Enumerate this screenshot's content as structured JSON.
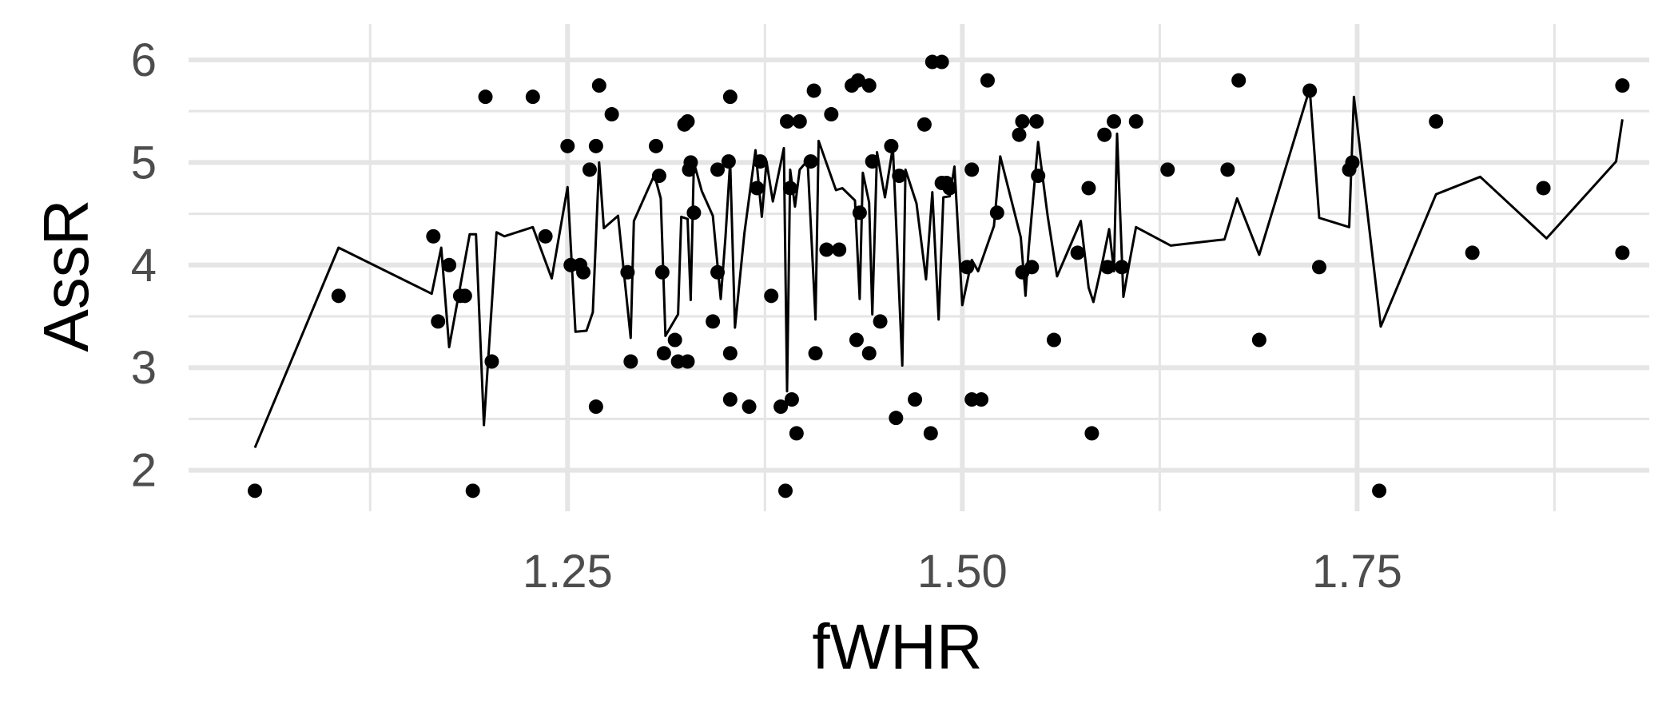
{
  "chart_data": {
    "type": "scatter",
    "xlabel": "fWHR",
    "ylabel": "AssR",
    "xlim": [
      1.01,
      1.935
    ],
    "ylim": [
      1.6,
      6.35
    ],
    "x_ticks": [
      1.25,
      1.5,
      1.75
    ],
    "x_tick_labels": [
      "1.25",
      "1.50",
      "1.75"
    ],
    "x_minor_ticks": [
      1.125,
      1.375,
      1.625,
      1.875
    ],
    "y_ticks": [
      2,
      3,
      4,
      5,
      6
    ],
    "y_tick_labels": [
      "2",
      "3",
      "4",
      "5",
      "6"
    ],
    "y_minor_ticks": [
      2.5,
      3.5,
      4.5,
      5.5
    ],
    "grid": true,
    "legend": "none",
    "colors": {
      "points": "#000000",
      "line": "#000000",
      "grid": "#e5e5e5"
    },
    "points": [
      [
        1.052,
        1.8
      ],
      [
        1.105,
        3.7
      ],
      [
        1.165,
        4.28
      ],
      [
        1.168,
        3.45
      ],
      [
        1.175,
        4.0
      ],
      [
        1.182,
        3.7
      ],
      [
        1.185,
        3.7
      ],
      [
        1.19,
        1.8
      ],
      [
        1.198,
        5.64
      ],
      [
        1.202,
        3.06
      ],
      [
        1.228,
        5.64
      ],
      [
        1.236,
        4.28
      ],
      [
        1.25,
        5.16
      ],
      [
        1.252,
        4.0
      ],
      [
        1.258,
        4.0
      ],
      [
        1.26,
        3.93
      ],
      [
        1.264,
        4.93
      ],
      [
        1.268,
        5.16
      ],
      [
        1.268,
        2.62
      ],
      [
        1.27,
        5.75
      ],
      [
        1.278,
        5.47
      ],
      [
        1.288,
        3.93
      ],
      [
        1.29,
        3.06
      ],
      [
        1.306,
        5.16
      ],
      [
        1.308,
        4.87
      ],
      [
        1.31,
        3.93
      ],
      [
        1.311,
        3.14
      ],
      [
        1.318,
        3.27
      ],
      [
        1.32,
        3.06
      ],
      [
        1.324,
        5.37
      ],
      [
        1.326,
        5.4
      ],
      [
        1.326,
        3.06
      ],
      [
        1.327,
        4.93
      ],
      [
        1.328,
        5.0
      ],
      [
        1.33,
        4.51
      ],
      [
        1.342,
        3.45
      ],
      [
        1.345,
        4.93
      ],
      [
        1.345,
        3.93
      ],
      [
        1.352,
        5.01
      ],
      [
        1.353,
        5.64
      ],
      [
        1.353,
        3.14
      ],
      [
        1.353,
        2.69
      ],
      [
        1.365,
        2.62
      ],
      [
        1.37,
        4.75
      ],
      [
        1.372,
        5.01
      ],
      [
        1.379,
        3.7
      ],
      [
        1.385,
        2.62
      ],
      [
        1.388,
        1.8
      ],
      [
        1.389,
        5.4
      ],
      [
        1.391,
        4.75
      ],
      [
        1.392,
        2.69
      ],
      [
        1.395,
        2.36
      ],
      [
        1.397,
        5.4
      ],
      [
        1.404,
        5.01
      ],
      [
        1.406,
        5.7
      ],
      [
        1.407,
        3.14
      ],
      [
        1.414,
        4.15
      ],
      [
        1.417,
        5.47
      ],
      [
        1.422,
        4.15
      ],
      [
        1.43,
        5.75
      ],
      [
        1.434,
        5.8
      ],
      [
        1.435,
        4.51
      ],
      [
        1.433,
        3.27
      ],
      [
        1.441,
        5.75
      ],
      [
        1.441,
        3.14
      ],
      [
        1.443,
        5.01
      ],
      [
        1.448,
        3.45
      ],
      [
        1.455,
        5.16
      ],
      [
        1.458,
        2.51
      ],
      [
        1.46,
        4.87
      ],
      [
        1.47,
        2.69
      ],
      [
        1.476,
        5.37
      ],
      [
        1.481,
        5.98
      ],
      [
        1.48,
        2.36
      ],
      [
        1.487,
        5.98
      ],
      [
        1.487,
        4.8
      ],
      [
        1.49,
        4.8
      ],
      [
        1.492,
        4.75
      ],
      [
        1.503,
        3.98
      ],
      [
        1.506,
        2.69
      ],
      [
        1.506,
        4.93
      ],
      [
        1.512,
        2.69
      ],
      [
        1.516,
        5.8
      ],
      [
        1.522,
        4.51
      ],
      [
        1.536,
        5.27
      ],
      [
        1.538,
        5.4
      ],
      [
        1.538,
        3.93
      ],
      [
        1.544,
        3.98
      ],
      [
        1.547,
        5.4
      ],
      [
        1.548,
        4.87
      ],
      [
        1.558,
        3.27
      ],
      [
        1.573,
        4.12
      ],
      [
        1.58,
        4.75
      ],
      [
        1.582,
        2.36
      ],
      [
        1.59,
        5.27
      ],
      [
        1.592,
        3.98
      ],
      [
        1.596,
        5.4
      ],
      [
        1.601,
        3.98
      ],
      [
        1.61,
        5.4
      ],
      [
        1.63,
        4.93
      ],
      [
        1.668,
        4.93
      ],
      [
        1.675,
        5.8
      ],
      [
        1.688,
        3.27
      ],
      [
        1.72,
        5.7
      ],
      [
        1.726,
        3.98
      ],
      [
        1.745,
        4.93
      ],
      [
        1.747,
        5.0
      ],
      [
        1.764,
        1.8
      ],
      [
        1.8,
        5.4
      ],
      [
        1.823,
        4.12
      ],
      [
        1.868,
        4.75
      ],
      [
        1.918,
        5.75
      ],
      [
        1.918,
        4.12
      ]
    ],
    "line": [
      [
        1.052,
        2.22
      ],
      [
        1.105,
        4.17
      ],
      [
        1.164,
        3.72
      ],
      [
        1.17,
        4.17
      ],
      [
        1.175,
        3.2
      ],
      [
        1.188,
        4.3
      ],
      [
        1.192,
        4.3
      ],
      [
        1.197,
        2.44
      ],
      [
        1.205,
        4.32
      ],
      [
        1.21,
        4.28
      ],
      [
        1.228,
        4.37
      ],
      [
        1.24,
        3.87
      ],
      [
        1.25,
        4.76
      ],
      [
        1.255,
        3.35
      ],
      [
        1.262,
        3.36
      ],
      [
        1.266,
        3.54
      ],
      [
        1.27,
        5.0
      ],
      [
        1.273,
        4.36
      ],
      [
        1.282,
        4.48
      ],
      [
        1.29,
        3.29
      ],
      [
        1.292,
        4.43
      ],
      [
        1.305,
        4.88
      ],
      [
        1.309,
        4.65
      ],
      [
        1.312,
        3.31
      ],
      [
        1.32,
        3.52
      ],
      [
        1.322,
        4.47
      ],
      [
        1.326,
        4.45
      ],
      [
        1.328,
        3.66
      ],
      [
        1.33,
        5.0
      ],
      [
        1.335,
        4.72
      ],
      [
        1.342,
        4.48
      ],
      [
        1.347,
        3.67
      ],
      [
        1.35,
        4.27
      ],
      [
        1.353,
        5.01
      ],
      [
        1.356,
        3.39
      ],
      [
        1.362,
        4.31
      ],
      [
        1.369,
        5.12
      ],
      [
        1.373,
        4.47
      ],
      [
        1.376,
        5.01
      ],
      [
        1.38,
        4.62
      ],
      [
        1.387,
        5.14
      ],
      [
        1.389,
        2.77
      ],
      [
        1.391,
        4.93
      ],
      [
        1.394,
        4.57
      ],
      [
        1.397,
        4.93
      ],
      [
        1.402,
        5.02
      ],
      [
        1.407,
        3.47
      ],
      [
        1.409,
        5.21
      ],
      [
        1.42,
        4.73
      ],
      [
        1.424,
        4.75
      ],
      [
        1.432,
        4.63
      ],
      [
        1.435,
        3.67
      ],
      [
        1.437,
        4.9
      ],
      [
        1.441,
        4.61
      ],
      [
        1.443,
        3.52
      ],
      [
        1.446,
        5.1
      ],
      [
        1.451,
        4.66
      ],
      [
        1.456,
        5.15
      ],
      [
        1.462,
        3.02
      ],
      [
        1.464,
        4.93
      ],
      [
        1.471,
        4.6
      ],
      [
        1.477,
        3.86
      ],
      [
        1.481,
        4.71
      ],
      [
        1.485,
        3.47
      ],
      [
        1.488,
        4.66
      ],
      [
        1.492,
        4.67
      ],
      [
        1.495,
        4.96
      ],
      [
        1.5,
        3.61
      ],
      [
        1.506,
        4.05
      ],
      [
        1.51,
        3.94
      ],
      [
        1.52,
        4.38
      ],
      [
        1.524,
        5.06
      ],
      [
        1.537,
        4.27
      ],
      [
        1.54,
        3.7
      ],
      [
        1.542,
        4.15
      ],
      [
        1.548,
        5.2
      ],
      [
        1.554,
        4.48
      ],
      [
        1.56,
        3.89
      ],
      [
        1.575,
        4.43
      ],
      [
        1.58,
        3.78
      ],
      [
        1.583,
        3.64
      ],
      [
        1.589,
        4.05
      ],
      [
        1.593,
        4.35
      ],
      [
        1.596,
        3.94
      ],
      [
        1.598,
        5.28
      ],
      [
        1.602,
        3.69
      ],
      [
        1.606,
        4.04
      ],
      [
        1.61,
        4.37
      ],
      [
        1.632,
        4.19
      ],
      [
        1.666,
        4.25
      ],
      [
        1.674,
        4.65
      ],
      [
        1.688,
        4.1
      ],
      [
        1.72,
        5.72
      ],
      [
        1.726,
        4.46
      ],
      [
        1.745,
        4.37
      ],
      [
        1.748,
        5.64
      ],
      [
        1.765,
        3.4
      ],
      [
        1.8,
        4.69
      ],
      [
        1.828,
        4.86
      ],
      [
        1.87,
        4.26
      ],
      [
        1.914,
        5.01
      ],
      [
        1.918,
        5.42
      ]
    ]
  }
}
